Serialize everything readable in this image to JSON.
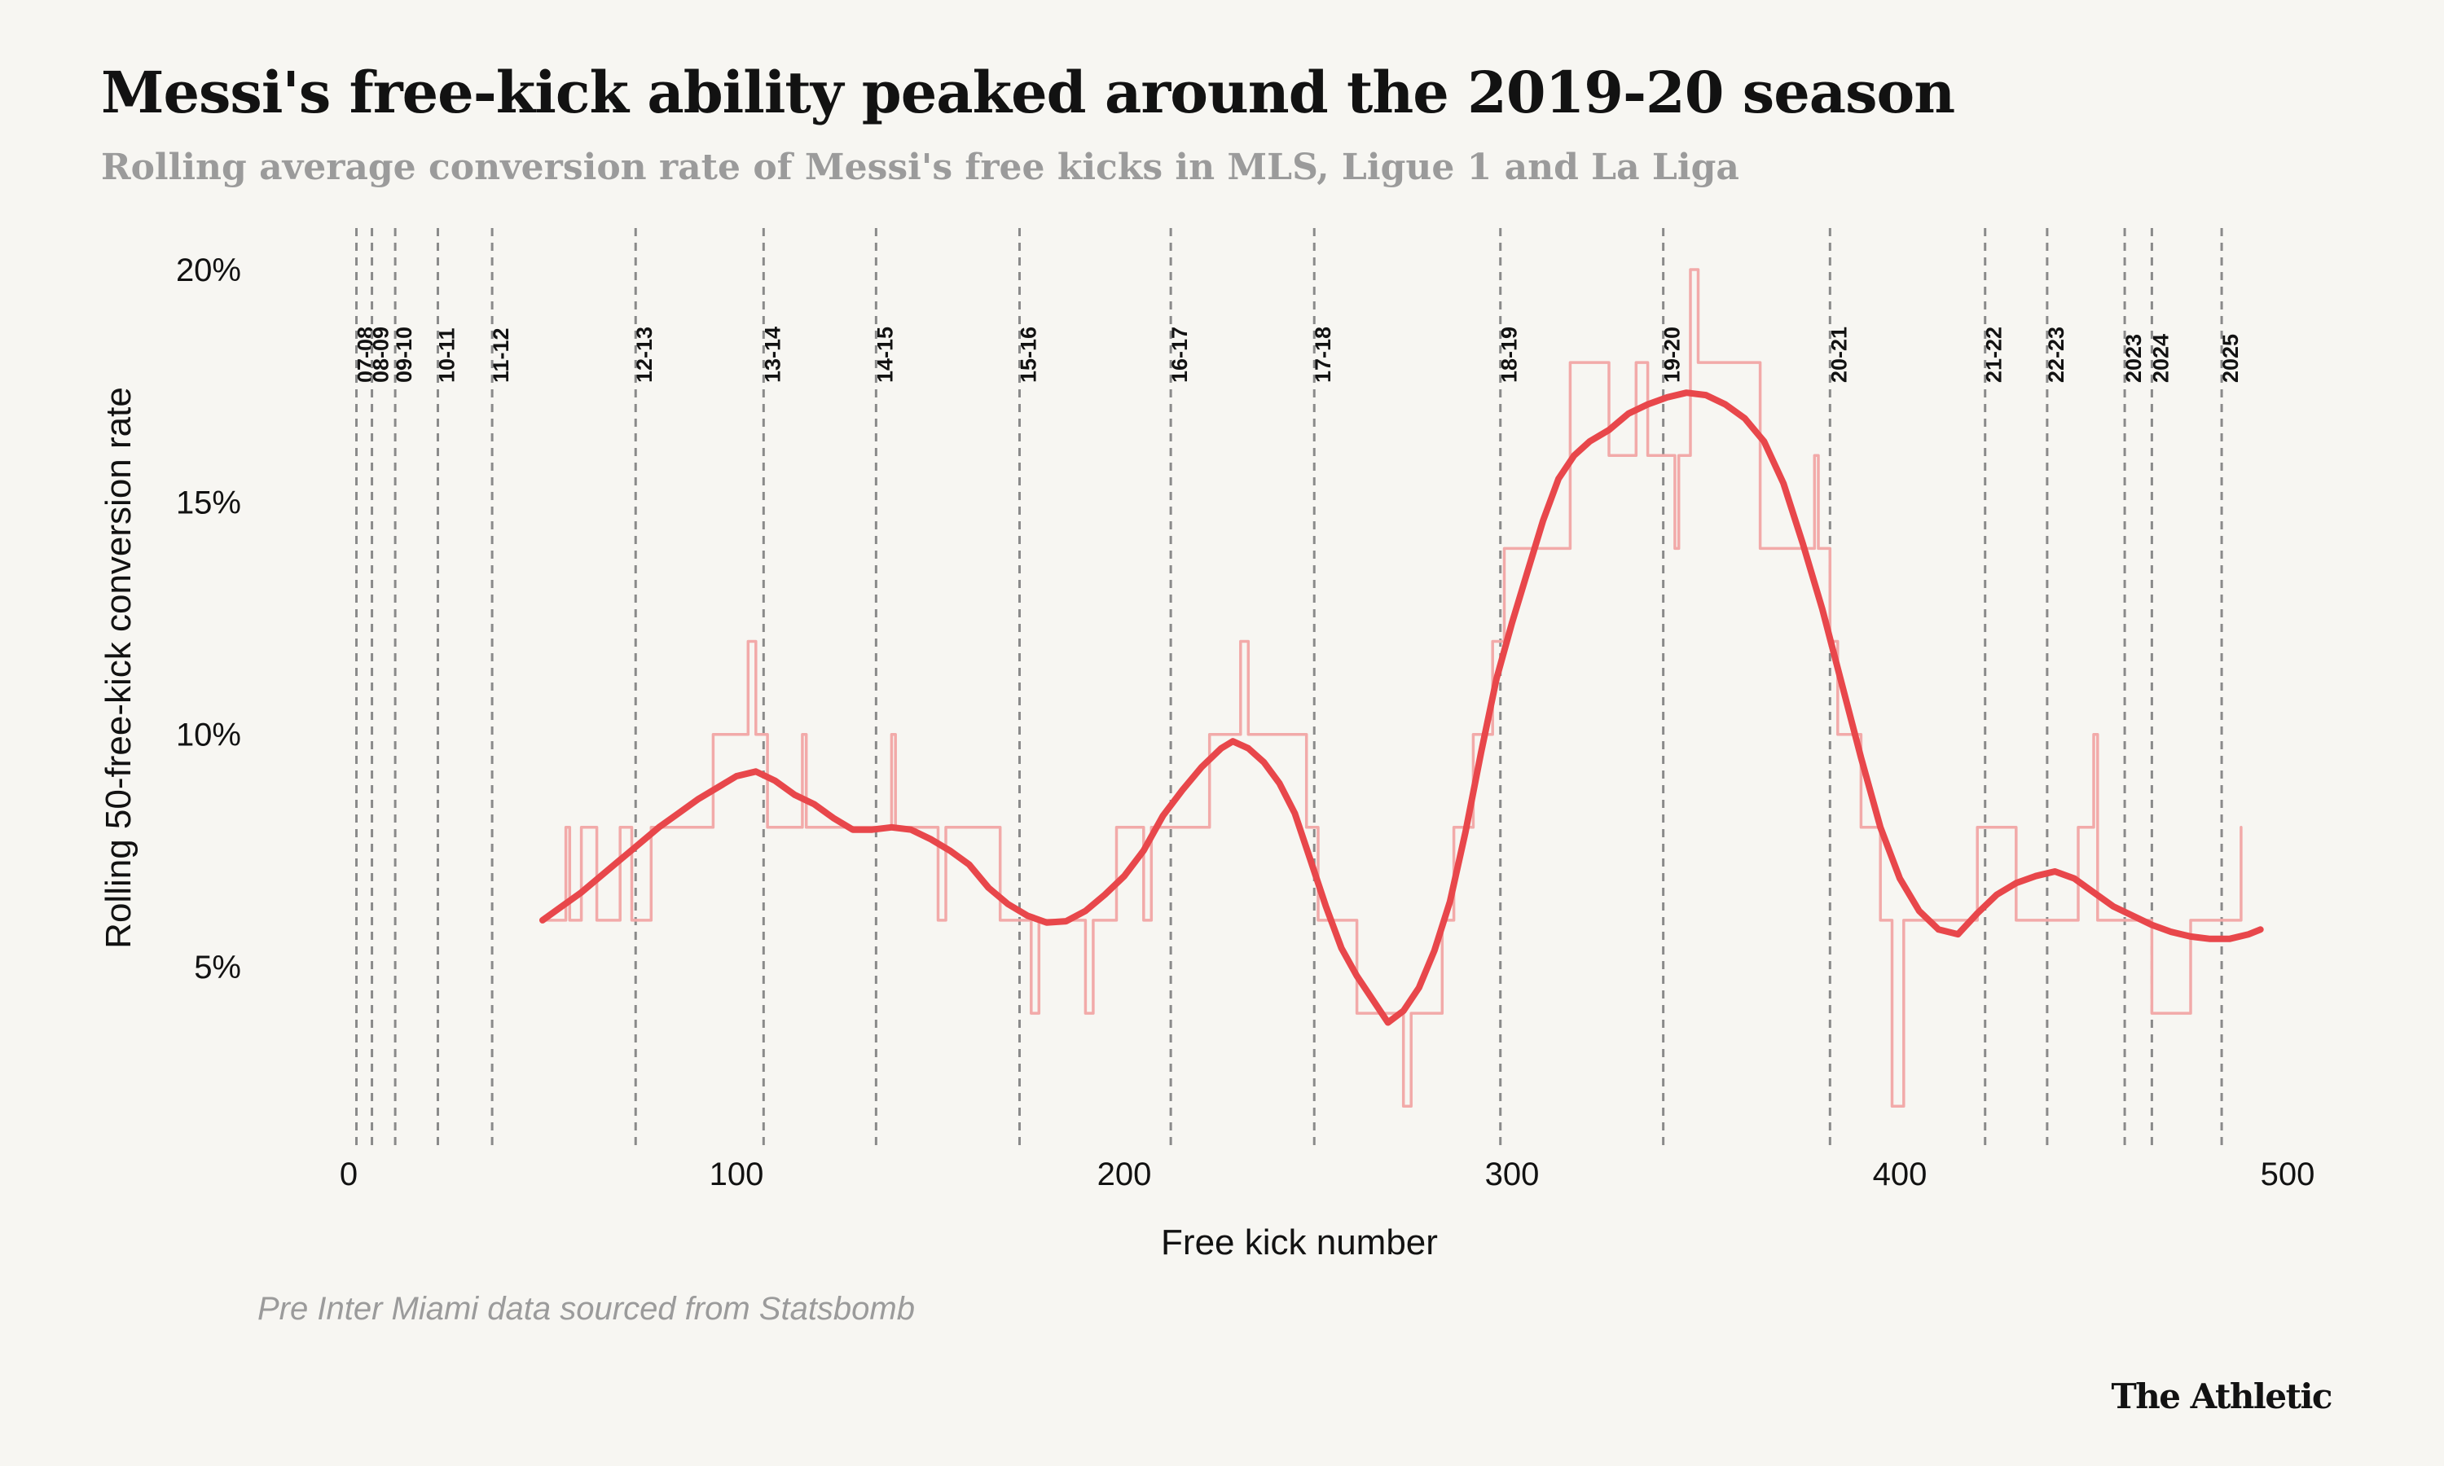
{
  "header": {
    "title": "Messi's free-kick ability peaked around the 2019-20 season",
    "subtitle": "Rolling average conversion rate of Messi's free kicks in MLS, Ligue 1 and La Liga"
  },
  "footer": {
    "source": "Pre Inter Miami data sourced from Statsbomb",
    "logo": "The Athletic"
  },
  "colors": {
    "background": "#f7f6f2",
    "smooth_line": "#e8474b",
    "raw_line": "#f2aaa9",
    "season_line": "#8a8a8a"
  },
  "chart_data": {
    "type": "line",
    "title": "Messi's free-kick ability peaked around the 2019-20 season",
    "subtitle": "Rolling average conversion rate of Messi's free kicks in MLS, Ligue 1 and La Liga",
    "xlabel": "Free kick number",
    "ylabel": "Rolling 50-free-kick conversion rate",
    "xlim": [
      0,
      500
    ],
    "ylim": [
      1,
      20.5
    ],
    "x_ticks": [
      {
        "value": 0,
        "label": "0"
      },
      {
        "value": 100,
        "label": "100"
      },
      {
        "value": 200,
        "label": "200"
      },
      {
        "value": 300,
        "label": "300"
      },
      {
        "value": 400,
        "label": "400"
      },
      {
        "value": 500,
        "label": "500"
      }
    ],
    "y_ticks": [
      {
        "value": 5,
        "label": "5%"
      },
      {
        "value": 10,
        "label": "10%"
      },
      {
        "value": 15,
        "label": "15%"
      },
      {
        "value": 20,
        "label": "20%"
      }
    ],
    "grid": false,
    "seasons": [
      {
        "label": "07-08",
        "x": 2
      },
      {
        "label": "08-09",
        "x": 6
      },
      {
        "label": "09-10",
        "x": 12
      },
      {
        "label": "10-11",
        "x": 23
      },
      {
        "label": "11-12",
        "x": 37
      },
      {
        "label": "12-13",
        "x": 74
      },
      {
        "label": "13-14",
        "x": 107
      },
      {
        "label": "14-15",
        "x": 136
      },
      {
        "label": "15-16",
        "x": 173
      },
      {
        "label": "16-17",
        "x": 212
      },
      {
        "label": "17-18",
        "x": 249
      },
      {
        "label": "18-19",
        "x": 297
      },
      {
        "label": "19-20",
        "x": 339
      },
      {
        "label": "20-21",
        "x": 382
      },
      {
        "label": "21-22",
        "x": 422
      },
      {
        "label": "22-23",
        "x": 438
      },
      {
        "label": "2023",
        "x": 458
      },
      {
        "label": "2024",
        "x": 465
      },
      {
        "label": "2025",
        "x": 483
      }
    ],
    "series": [
      {
        "name": "Rolling 50-free-kick conversion rate",
        "style": "raw-step",
        "points": [
          [
            50,
            6
          ],
          [
            56,
            6
          ],
          [
            56,
            8
          ],
          [
            57,
            8
          ],
          [
            57,
            6
          ],
          [
            60,
            6
          ],
          [
            60,
            8
          ],
          [
            64,
            8
          ],
          [
            64,
            6
          ],
          [
            70,
            6
          ],
          [
            70,
            8
          ],
          [
            73,
            8
          ],
          [
            73,
            6
          ],
          [
            78,
            6
          ],
          [
            78,
            8
          ],
          [
            94,
            8
          ],
          [
            94,
            10
          ],
          [
            103,
            10
          ],
          [
            103,
            12
          ],
          [
            105,
            12
          ],
          [
            105,
            10
          ],
          [
            108,
            10
          ],
          [
            108,
            8
          ],
          [
            117,
            8
          ],
          [
            117,
            10
          ],
          [
            118,
            10
          ],
          [
            118,
            8
          ],
          [
            128,
            8
          ],
          [
            128,
            8
          ],
          [
            140,
            8
          ],
          [
            140,
            10
          ],
          [
            141,
            10
          ],
          [
            141,
            8
          ],
          [
            152,
            8
          ],
          [
            152,
            6
          ],
          [
            154,
            6
          ],
          [
            154,
            8
          ],
          [
            168,
            8
          ],
          [
            168,
            6
          ],
          [
            176,
            6
          ],
          [
            176,
            4
          ],
          [
            178,
            4
          ],
          [
            178,
            6
          ],
          [
            190,
            6
          ],
          [
            190,
            4
          ],
          [
            192,
            4
          ],
          [
            192,
            6
          ],
          [
            198,
            6
          ],
          [
            198,
            8
          ],
          [
            205,
            8
          ],
          [
            205,
            6
          ],
          [
            207,
            6
          ],
          [
            207,
            8
          ],
          [
            222,
            8
          ],
          [
            222,
            10
          ],
          [
            230,
            10
          ],
          [
            230,
            12
          ],
          [
            232,
            12
          ],
          [
            232,
            10
          ],
          [
            247,
            10
          ],
          [
            247,
            8
          ],
          [
            250,
            8
          ],
          [
            250,
            6
          ],
          [
            260,
            6
          ],
          [
            260,
            4
          ],
          [
            272,
            4
          ],
          [
            272,
            2
          ],
          [
            274,
            2
          ],
          [
            274,
            4
          ],
          [
            282,
            4
          ],
          [
            282,
            6
          ],
          [
            285,
            6
          ],
          [
            285,
            8
          ],
          [
            290,
            8
          ],
          [
            290,
            10
          ],
          [
            295,
            10
          ],
          [
            295,
            12
          ],
          [
            298,
            12
          ],
          [
            298,
            14
          ],
          [
            315,
            14
          ],
          [
            315,
            18
          ],
          [
            325,
            18
          ],
          [
            325,
            16
          ],
          [
            332,
            16
          ],
          [
            332,
            18
          ],
          [
            335,
            18
          ],
          [
            335,
            16
          ],
          [
            342,
            16
          ],
          [
            342,
            14
          ],
          [
            343,
            14
          ],
          [
            343,
            16
          ],
          [
            346,
            16
          ],
          [
            346,
            20
          ],
          [
            348,
            20
          ],
          [
            348,
            18
          ],
          [
            364,
            18
          ],
          [
            364,
            14
          ],
          [
            378,
            14
          ],
          [
            378,
            16
          ],
          [
            379,
            16
          ],
          [
            379,
            14
          ],
          [
            382,
            14
          ],
          [
            382,
            12
          ],
          [
            384,
            12
          ],
          [
            384,
            10
          ],
          [
            390,
            10
          ],
          [
            390,
            8
          ],
          [
            395,
            8
          ],
          [
            395,
            6
          ],
          [
            398,
            6
          ],
          [
            398,
            2
          ],
          [
            401,
            2
          ],
          [
            401,
            6
          ],
          [
            420,
            6
          ],
          [
            420,
            8
          ],
          [
            430,
            8
          ],
          [
            430,
            6
          ],
          [
            446,
            6
          ],
          [
            446,
            8
          ],
          [
            450,
            8
          ],
          [
            450,
            10
          ],
          [
            451,
            10
          ],
          [
            451,
            6
          ],
          [
            465,
            6
          ],
          [
            465,
            4
          ],
          [
            475,
            4
          ],
          [
            475,
            6
          ],
          [
            488,
            6
          ],
          [
            488,
            8
          ]
        ]
      },
      {
        "name": "Smoothed trend",
        "style": "smooth",
        "points": [
          [
            50,
            6
          ],
          [
            55,
            6.3
          ],
          [
            60,
            6.6
          ],
          [
            65,
            6.95
          ],
          [
            70,
            7.3
          ],
          [
            75,
            7.65
          ],
          [
            80,
            8.0
          ],
          [
            85,
            8.3
          ],
          [
            90,
            8.6
          ],
          [
            95,
            8.85
          ],
          [
            100,
            9.1
          ],
          [
            105,
            9.2
          ],
          [
            110,
            9.0
          ],
          [
            115,
            8.7
          ],
          [
            120,
            8.5
          ],
          [
            125,
            8.2
          ],
          [
            130,
            7.95
          ],
          [
            135,
            7.95
          ],
          [
            140,
            8.0
          ],
          [
            145,
            7.95
          ],
          [
            150,
            7.75
          ],
          [
            155,
            7.5
          ],
          [
            160,
            7.2
          ],
          [
            165,
            6.7
          ],
          [
            170,
            6.35
          ],
          [
            175,
            6.1
          ],
          [
            180,
            5.95
          ],
          [
            185,
            5.98
          ],
          [
            190,
            6.2
          ],
          [
            195,
            6.55
          ],
          [
            200,
            6.95
          ],
          [
            205,
            7.5
          ],
          [
            210,
            8.25
          ],
          [
            215,
            8.8
          ],
          [
            220,
            9.3
          ],
          [
            225,
            9.7
          ],
          [
            228,
            9.85
          ],
          [
            232,
            9.7
          ],
          [
            236,
            9.4
          ],
          [
            240,
            8.95
          ],
          [
            244,
            8.3
          ],
          [
            248,
            7.3
          ],
          [
            252,
            6.3
          ],
          [
            256,
            5.4
          ],
          [
            260,
            4.8
          ],
          [
            264,
            4.3
          ],
          [
            268,
            3.8
          ],
          [
            272,
            4.05
          ],
          [
            276,
            4.55
          ],
          [
            280,
            5.35
          ],
          [
            284,
            6.4
          ],
          [
            288,
            7.9
          ],
          [
            292,
            9.6
          ],
          [
            296,
            11.2
          ],
          [
            300,
            12.4
          ],
          [
            304,
            13.5
          ],
          [
            308,
            14.6
          ],
          [
            312,
            15.5
          ],
          [
            316,
            16.0
          ],
          [
            320,
            16.3
          ],
          [
            325,
            16.55
          ],
          [
            330,
            16.9
          ],
          [
            335,
            17.1
          ],
          [
            340,
            17.25
          ],
          [
            345,
            17.35
          ],
          [
            350,
            17.3
          ],
          [
            355,
            17.1
          ],
          [
            360,
            16.8
          ],
          [
            365,
            16.3
          ],
          [
            370,
            15.4
          ],
          [
            375,
            14.1
          ],
          [
            380,
            12.7
          ],
          [
            385,
            11.1
          ],
          [
            390,
            9.5
          ],
          [
            395,
            8.0
          ],
          [
            400,
            6.9
          ],
          [
            405,
            6.2
          ],
          [
            410,
            5.8
          ],
          [
            415,
            5.7
          ],
          [
            420,
            6.15
          ],
          [
            425,
            6.55
          ],
          [
            430,
            6.8
          ],
          [
            435,
            6.95
          ],
          [
            440,
            7.05
          ],
          [
            445,
            6.9
          ],
          [
            450,
            6.6
          ],
          [
            455,
            6.3
          ],
          [
            460,
            6.1
          ],
          [
            465,
            5.9
          ],
          [
            470,
            5.75
          ],
          [
            475,
            5.65
          ],
          [
            480,
            5.6
          ],
          [
            485,
            5.6
          ],
          [
            490,
            5.7
          ],
          [
            493,
            5.8
          ]
        ]
      }
    ]
  }
}
